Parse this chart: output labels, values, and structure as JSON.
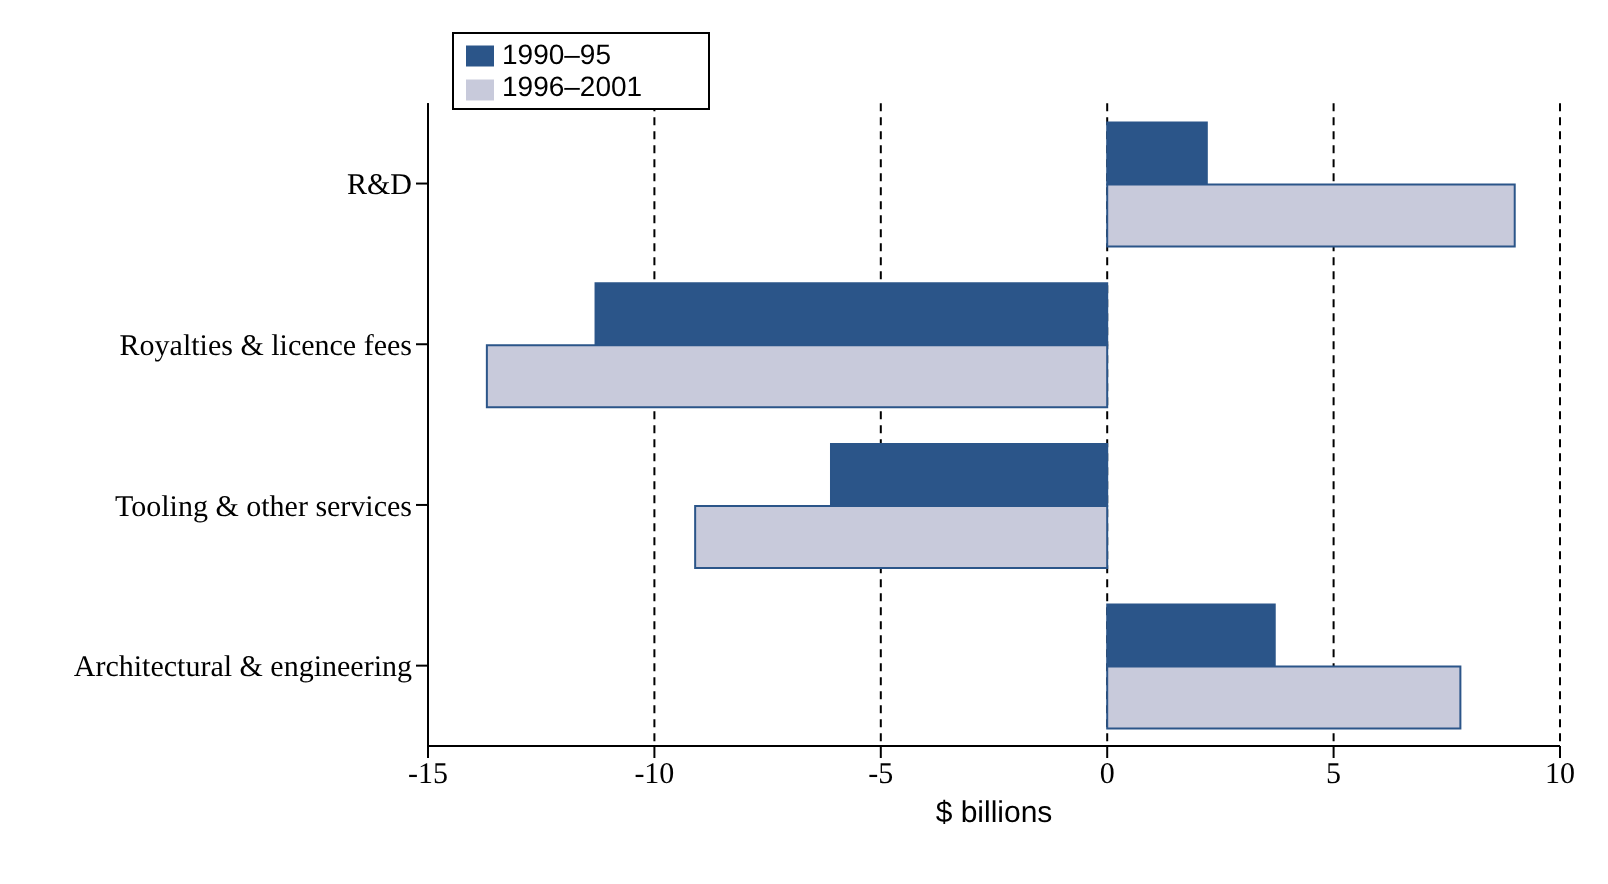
{
  "chart_data": {
    "type": "bar",
    "orientation": "horizontal",
    "xlabel": "$ billions",
    "categories": [
      "R&D",
      "Royalties & licence fees",
      "Tooling & other services",
      "Architectural & engineering"
    ],
    "series": [
      {
        "name": "1990–95",
        "color": "#2b5589",
        "values": [
          2.2,
          -11.3,
          -6.1,
          3.7
        ]
      },
      {
        "name": "1996–2001",
        "color": "#c8cadb",
        "values": [
          9.0,
          -13.7,
          -9.1,
          7.8
        ]
      }
    ],
    "xlim": [
      -15,
      10
    ],
    "xticks": [
      -15,
      -10,
      -5,
      0,
      5,
      10
    ],
    "grid": "x",
    "legend": "top left"
  }
}
